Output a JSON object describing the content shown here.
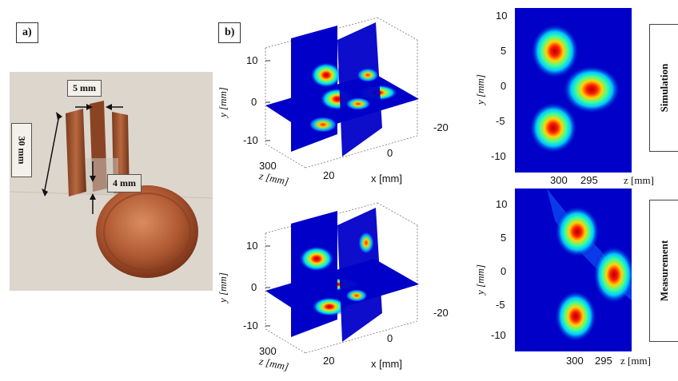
{
  "panel_a": {
    "label": "a)",
    "dim_top": "5 mm",
    "dim_left": "30 mm",
    "dim_gap": "4 mm"
  },
  "panel_b": {
    "label": "b)",
    "cube_top": {
      "y_ticks": [
        "10",
        "0",
        "-10"
      ],
      "y_label": "y [mm]",
      "z_tick": "300",
      "z_label": "z [mm]",
      "x_ticks": [
        "20",
        "0",
        "-20"
      ],
      "x_label": "x [mm]"
    },
    "cube_bottom": {
      "y_ticks": [
        "10",
        "0",
        "-10"
      ],
      "y_label": "y [mm]",
      "z_tick": "300",
      "z_label": "z [mm]",
      "x_ticks": [
        "20",
        "0",
        "-20"
      ],
      "x_label": "x [mm]"
    }
  },
  "heatmap_sim": {
    "side_label": "Simulation",
    "y_ticks": [
      "10",
      "5",
      "0",
      "-5",
      "-10"
    ],
    "y_label": "y [mm]",
    "x_ticks": [
      "300",
      "295"
    ],
    "x_label": "z [mm]"
  },
  "heatmap_meas": {
    "side_label": "Measurement",
    "y_ticks": [
      "10",
      "5",
      "0",
      "-5",
      "-10"
    ],
    "y_label": "y [mm]",
    "x_ticks": [
      "300",
      "295"
    ],
    "x_label": "z [mm]"
  },
  "colors": {
    "map_bg": "#0000c8",
    "hot": "#ff0000",
    "warm": "#ffff00",
    "mid": "#00e6ff",
    "copper": "#a0522d"
  }
}
